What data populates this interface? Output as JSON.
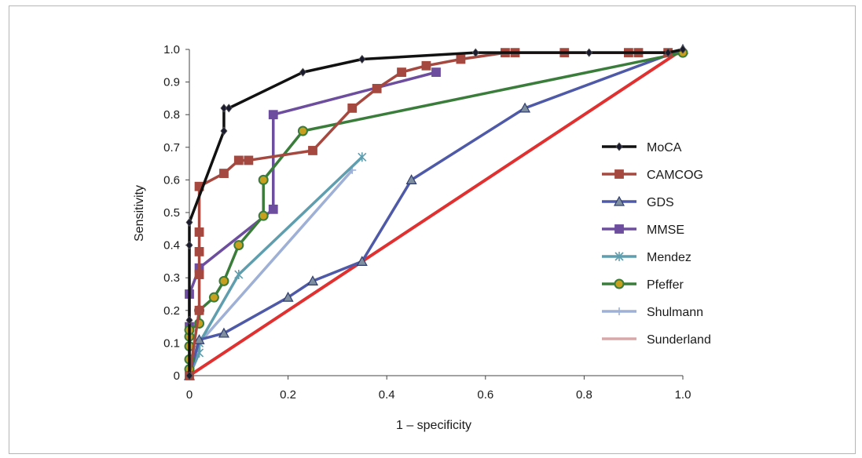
{
  "chart_data": {
    "type": "line",
    "xlabel": "1 – specificity",
    "ylabel": "Sensitivity",
    "xlim": [
      0,
      1.0
    ],
    "ylim": [
      0,
      1.0
    ],
    "x_ticks": [
      "0",
      "0.2",
      "0.4",
      "0.6",
      "0.8",
      "1.0"
    ],
    "y_ticks": [
      "0",
      "0.1",
      "0.2",
      "0.3",
      "0.4",
      "0.5",
      "0.6",
      "0.7",
      "0.8",
      "0.9",
      "1.0"
    ],
    "grid": false,
    "legend_position": "right",
    "reference_line": {
      "x": [
        0,
        1.0
      ],
      "y": [
        0,
        1.0
      ],
      "color": "#e03030"
    },
    "series": [
      {
        "name": "MoCA",
        "color": "#111111",
        "marker": "diamond",
        "x": [
          0,
          0,
          0,
          0,
          0.07,
          0.07,
          0.08,
          0.23,
          0.35,
          0.58,
          0.81,
          0.97,
          1.0
        ],
        "y": [
          0,
          0.17,
          0.4,
          0.47,
          0.75,
          0.82,
          0.82,
          0.93,
          0.97,
          0.99,
          0.99,
          0.99,
          1.0
        ]
      },
      {
        "name": "CAMCOG",
        "color": "#a5483f",
        "marker": "square",
        "x": [
          0,
          0.02,
          0.02,
          0.02,
          0.02,
          0.02,
          0.07,
          0.1,
          0.12,
          0.25,
          0.33,
          0.38,
          0.43,
          0.48,
          0.55,
          0.64,
          0.66,
          0.76,
          0.89,
          0.91,
          0.97
        ],
        "y": [
          0,
          0.2,
          0.31,
          0.38,
          0.44,
          0.58,
          0.62,
          0.66,
          0.66,
          0.69,
          0.82,
          0.88,
          0.93,
          0.95,
          0.97,
          0.99,
          0.99,
          0.99,
          0.99,
          0.99,
          0.99
        ]
      },
      {
        "name": "GDS",
        "color": "#4e5aa8",
        "marker": "triangle",
        "x": [
          0,
          0.02,
          0.07,
          0.2,
          0.25,
          0.35,
          0.45,
          0.68,
          1.0
        ],
        "y": [
          0,
          0.11,
          0.13,
          0.24,
          0.29,
          0.35,
          0.6,
          0.82,
          1.0
        ]
      },
      {
        "name": "MMSE",
        "color": "#6d4d9e",
        "marker": "square",
        "x": [
          0,
          0,
          0.02,
          0.17,
          0.17,
          0.5
        ],
        "y": [
          0.15,
          0.25,
          0.33,
          0.51,
          0.8,
          0.93
        ]
      },
      {
        "name": "Mendez",
        "color": "#5f9eae",
        "marker": "star",
        "x": [
          0,
          0.02,
          0.02,
          0.1,
          0.35
        ],
        "y": [
          0,
          0.07,
          0.1,
          0.31,
          0.67
        ]
      },
      {
        "name": "Pfeffer",
        "color": "#3a7c3a",
        "marker": "circle",
        "x": [
          0,
          0,
          0,
          0,
          0,
          0.02,
          0.02,
          0.05,
          0.07,
          0.1,
          0.15,
          0.15,
          0.23,
          1.0
        ],
        "y": [
          0.02,
          0.05,
          0.09,
          0.12,
          0.14,
          0.16,
          0.2,
          0.24,
          0.29,
          0.4,
          0.49,
          0.6,
          0.75,
          0.99
        ]
      },
      {
        "name": "Shulmann",
        "color": "#9fb0d6",
        "marker": "plus",
        "x": [
          0,
          0.02,
          0.33
        ],
        "y": [
          0,
          0.1,
          0.63
        ]
      },
      {
        "name": "Sunderland",
        "color": "#d8a8a8",
        "marker": "none",
        "x": [
          0,
          0.02
        ],
        "y": [
          0,
          0.12
        ]
      }
    ]
  }
}
